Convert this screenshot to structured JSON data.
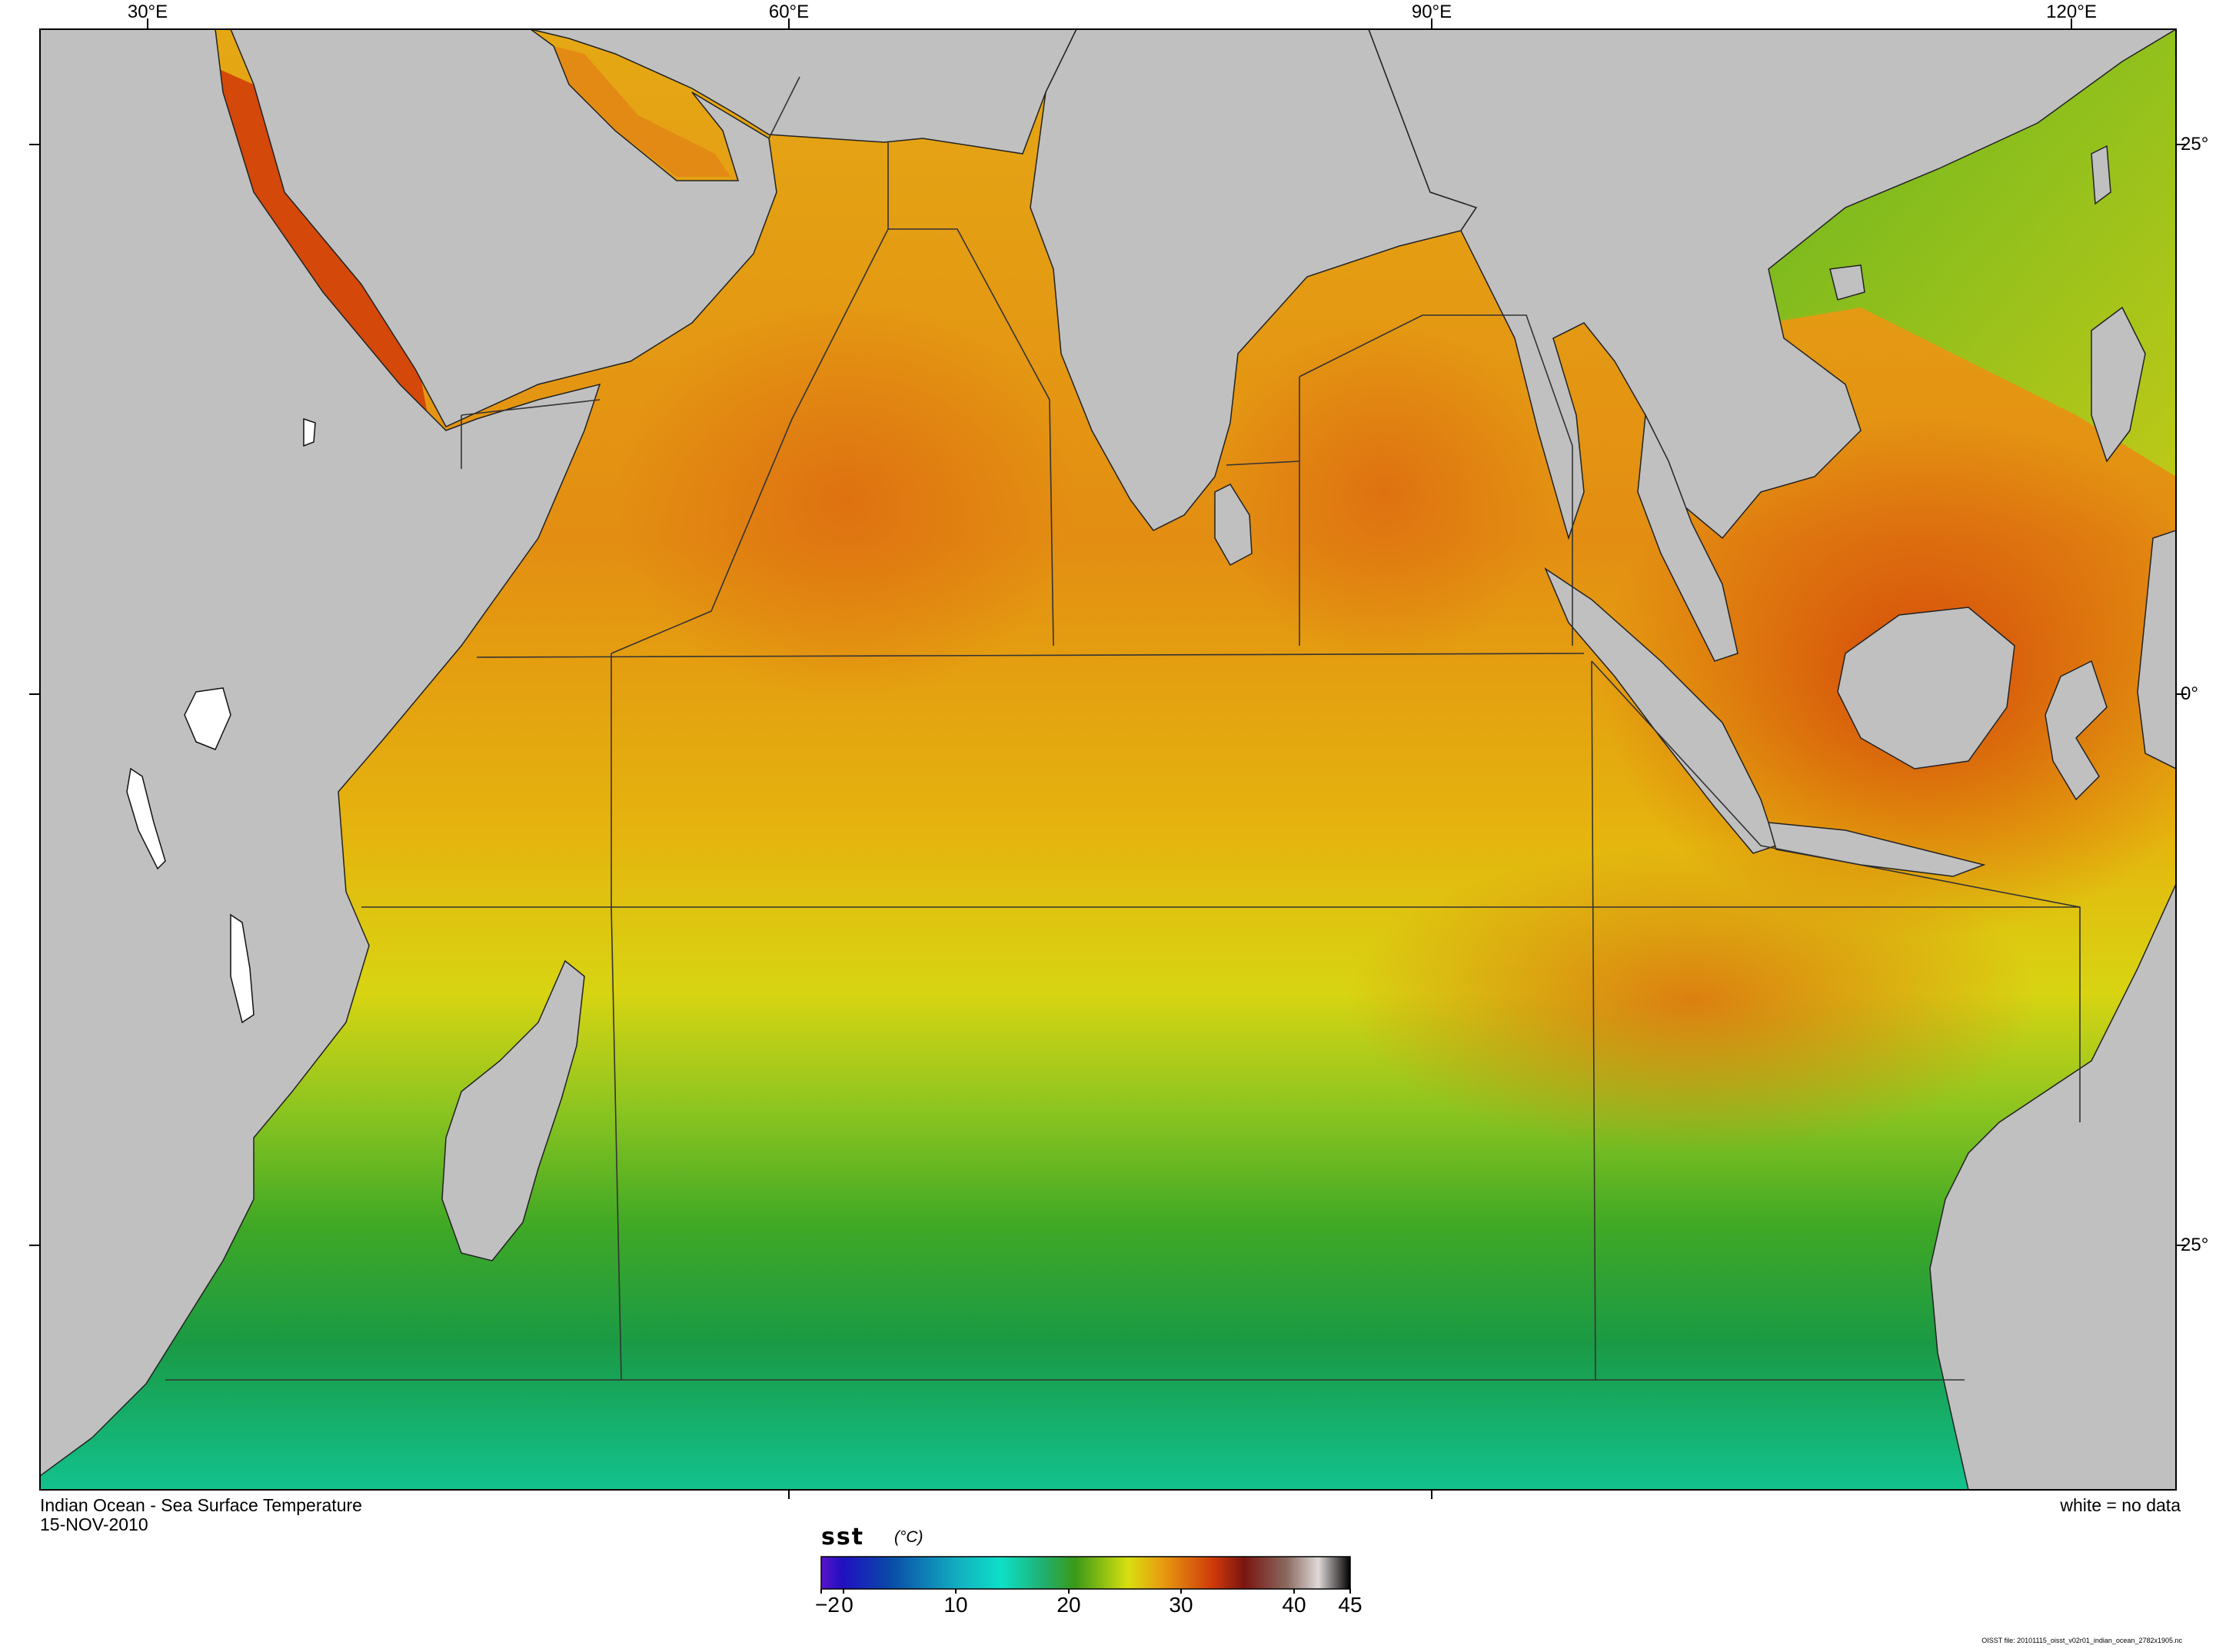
{
  "map": {
    "title": "Indian Ocean - Sea Surface Temperature",
    "date": "15-NOV-2010",
    "no_data_note": "white = no data",
    "lon_labels": [
      "30°E",
      "60°E",
      "90°E",
      "120°E"
    ],
    "lat_labels": [
      "25°",
      "0°",
      "25°"
    ],
    "variable": "sst",
    "units": "(°C)",
    "colorbar_ticks": [
      "−2",
      "0",
      "10",
      "20",
      "30",
      "40",
      "45"
    ],
    "colorbar_range": [
      -2,
      45
    ],
    "file_note": "OISST file: 20101115_oisst_v02r01_indian_ocean_2782x1905.nc"
  },
  "colors": {
    "land": "#c0c0c0",
    "warm": "#e07a10",
    "hot": "#d84a0a",
    "mid": "#e8c20a",
    "cool_green": "#3ea820",
    "cold_teal": "#10b890"
  }
}
